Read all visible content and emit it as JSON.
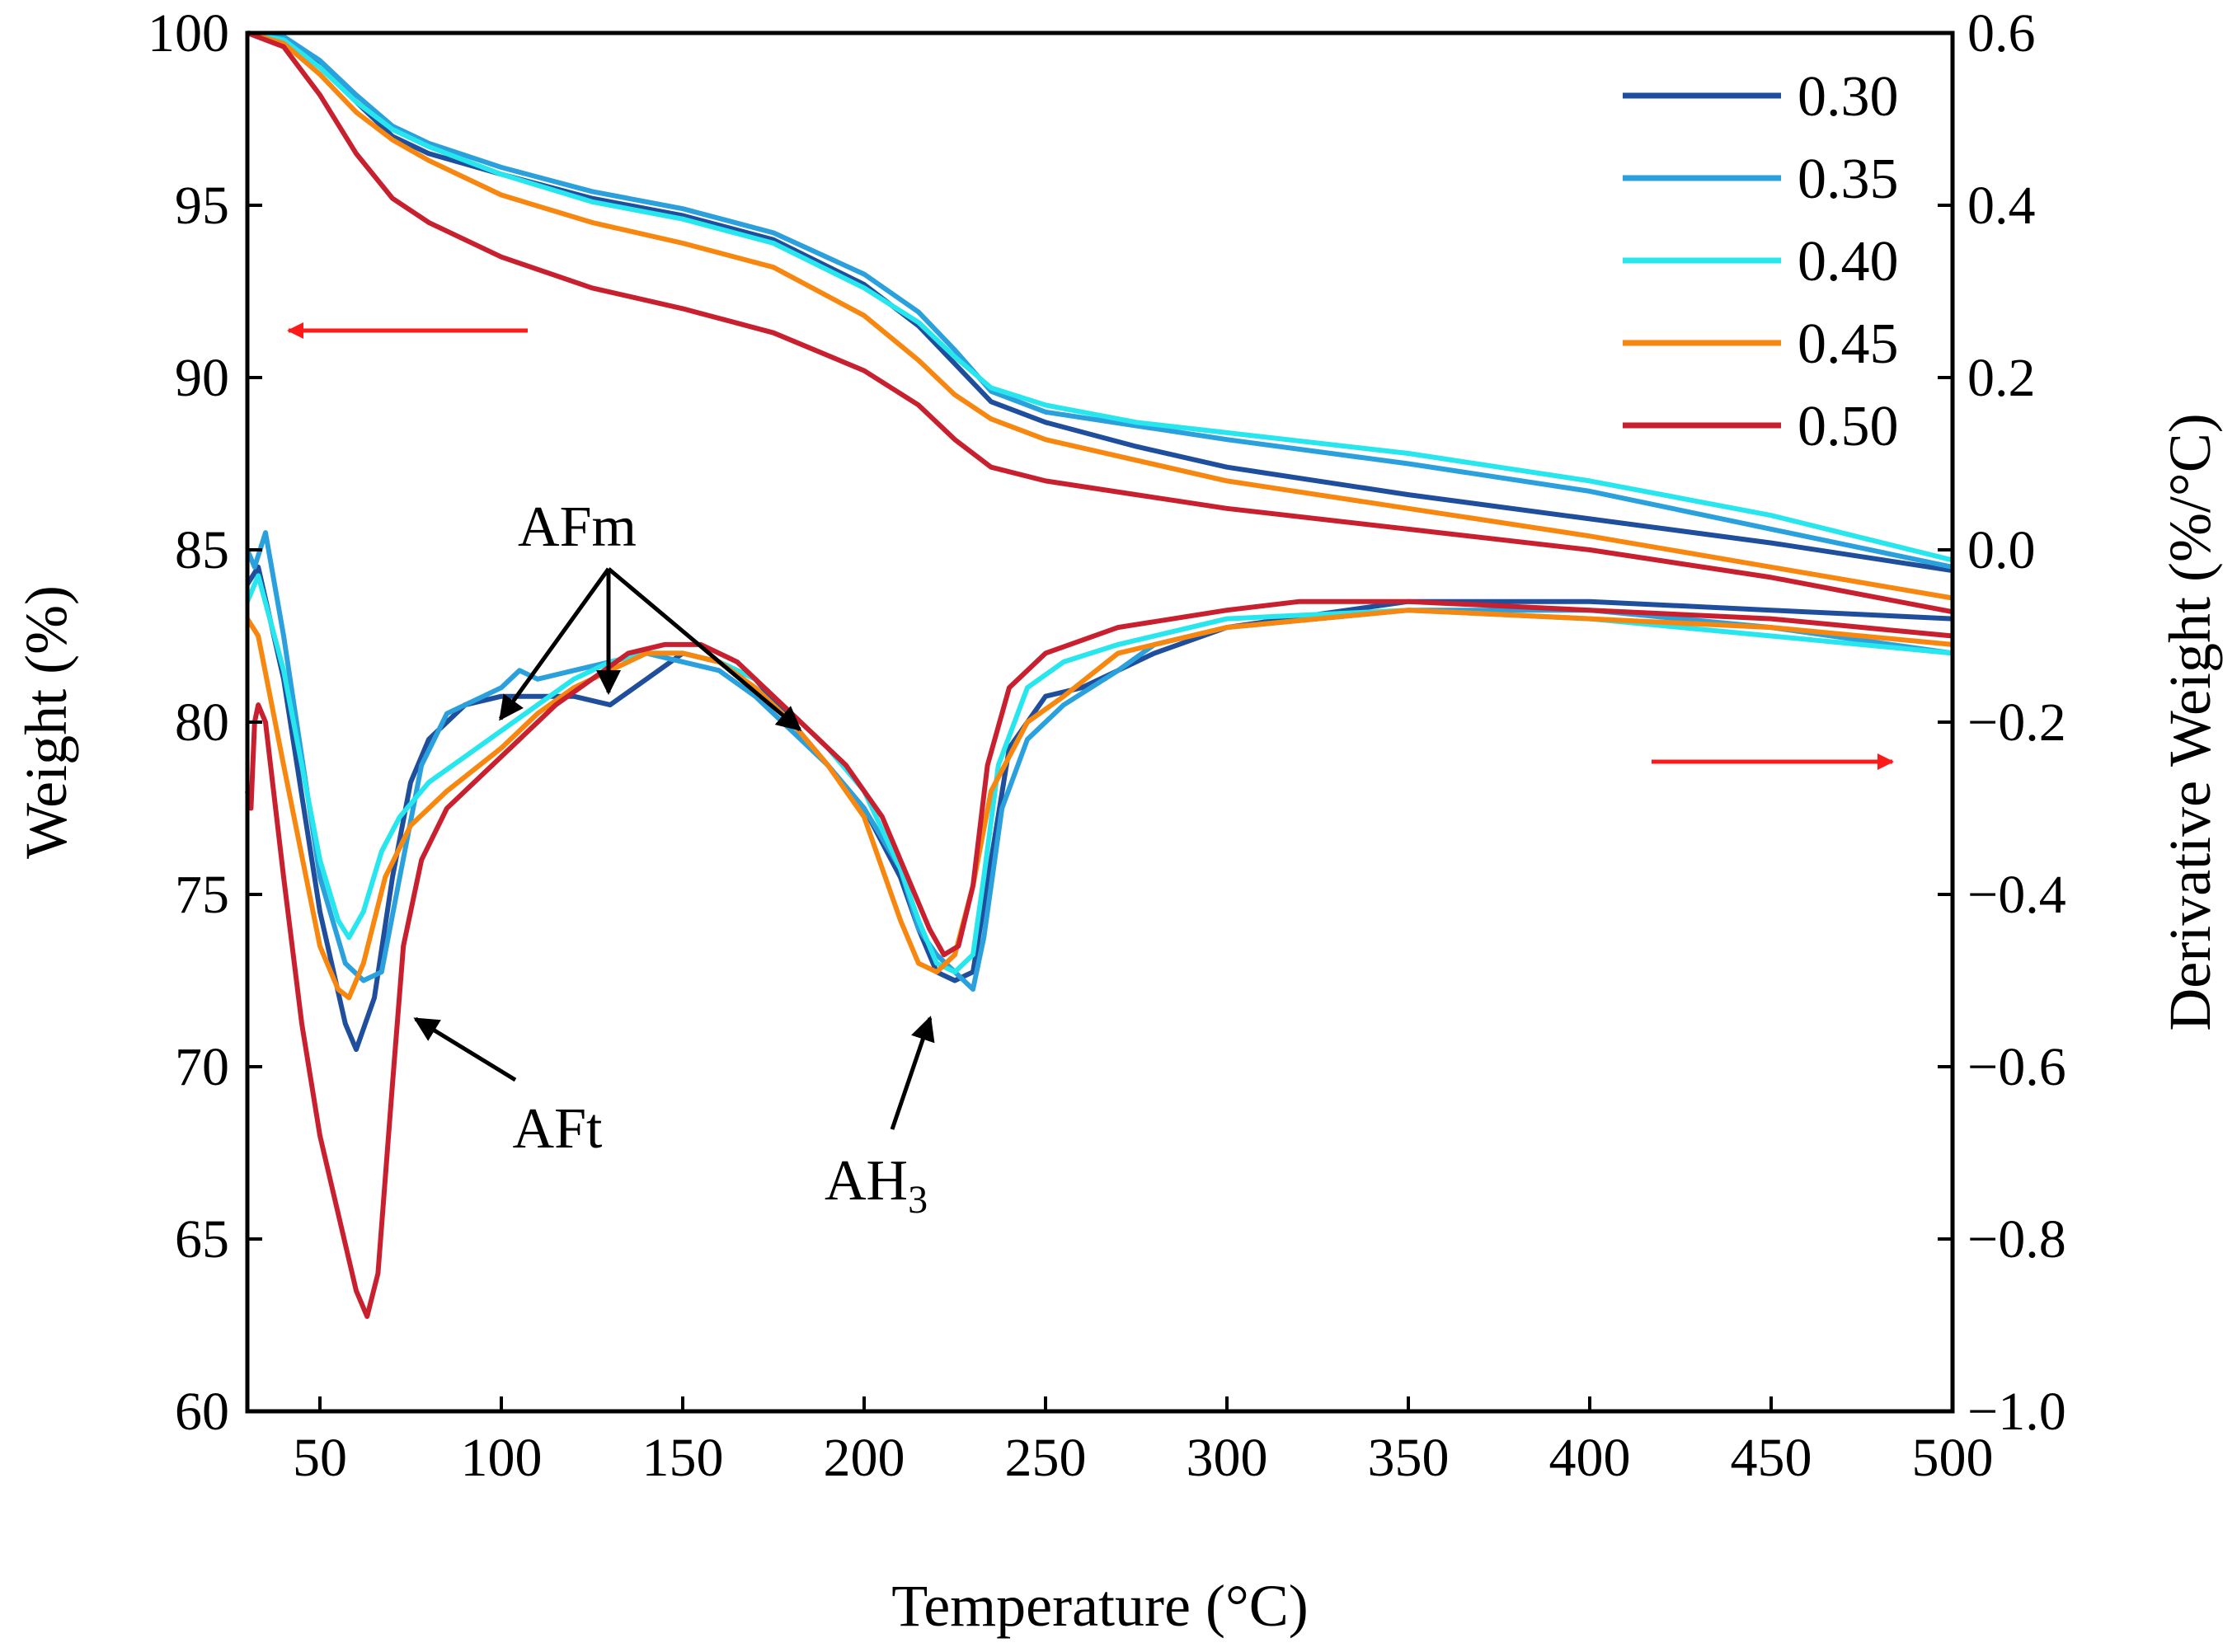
{
  "chart_data": {
    "type": "line",
    "title": "",
    "xlabel": "Temperature (°C)",
    "ylabel_left": "Weight (%)",
    "ylabel_right": "Derivative Weight (%/°C)",
    "xlim": [
      30,
      500
    ],
    "ylim_left": [
      60,
      100
    ],
    "ylim_right": [
      -1.0,
      0.6
    ],
    "x_ticks": [
      50,
      100,
      150,
      200,
      250,
      300,
      350,
      400,
      450,
      500
    ],
    "x_tick_labels": [
      "50",
      "100",
      "150",
      "200",
      "250",
      "300",
      "350",
      "400",
      "450",
      "500"
    ],
    "y_left_ticks": [
      60,
      65,
      70,
      75,
      80,
      85,
      90,
      95,
      100
    ],
    "y_left_tick_labels": [
      "60",
      "65",
      "70",
      "75",
      "80",
      "85",
      "90",
      "95",
      "100"
    ],
    "y_right_ticks": [
      -1.0,
      -0.8,
      -0.6,
      -0.4,
      -0.2,
      0.0,
      0.2,
      0.4,
      0.6
    ],
    "y_right_tick_labels": [
      "−1.0",
      "−0.8",
      "−0.6",
      "−0.4",
      "−0.2",
      "0.0",
      "0.2",
      "0.4",
      "0.6"
    ],
    "grid": false,
    "legend_position": "top-right",
    "series": [
      {
        "name": "0.30",
        "color": "#1f4e9c",
        "tg": [
          [
            30,
            100
          ],
          [
            40,
            99.8
          ],
          [
            50,
            99.1
          ],
          [
            60,
            98.0
          ],
          [
            70,
            97.0
          ],
          [
            80,
            96.5
          ],
          [
            100,
            95.9
          ],
          [
            125,
            95.2
          ],
          [
            150,
            94.7
          ],
          [
            175,
            94.0
          ],
          [
            200,
            92.7
          ],
          [
            215,
            91.5
          ],
          [
            225,
            90.4
          ],
          [
            235,
            89.3
          ],
          [
            250,
            88.7
          ],
          [
            275,
            88.0
          ],
          [
            300,
            87.4
          ],
          [
            350,
            86.6
          ],
          [
            400,
            85.9
          ],
          [
            450,
            85.2
          ],
          [
            500,
            84.4
          ]
        ],
        "dtg": [
          [
            30,
            -0.04
          ],
          [
            33,
            -0.02
          ],
          [
            40,
            -0.15
          ],
          [
            50,
            -0.42
          ],
          [
            57,
            -0.55
          ],
          [
            60,
            -0.58
          ],
          [
            65,
            -0.52
          ],
          [
            70,
            -0.38
          ],
          [
            75,
            -0.27
          ],
          [
            80,
            -0.22
          ],
          [
            90,
            -0.18
          ],
          [
            100,
            -0.17
          ],
          [
            110,
            -0.17
          ],
          [
            120,
            -0.17
          ],
          [
            130,
            -0.18
          ],
          [
            140,
            -0.15
          ],
          [
            150,
            -0.12
          ],
          [
            160,
            -0.13
          ],
          [
            170,
            -0.15
          ],
          [
            180,
            -0.2
          ],
          [
            190,
            -0.25
          ],
          [
            200,
            -0.3
          ],
          [
            210,
            -0.38
          ],
          [
            215,
            -0.44
          ],
          [
            220,
            -0.49
          ],
          [
            225,
            -0.5
          ],
          [
            230,
            -0.49
          ],
          [
            235,
            -0.36
          ],
          [
            240,
            -0.23
          ],
          [
            250,
            -0.17
          ],
          [
            260,
            -0.16
          ],
          [
            270,
            -0.14
          ],
          [
            280,
            -0.12
          ],
          [
            300,
            -0.09
          ],
          [
            350,
            -0.06
          ],
          [
            400,
            -0.06
          ],
          [
            450,
            -0.07
          ],
          [
            500,
            -0.08
          ]
        ]
      },
      {
        "name": "0.35",
        "color": "#2aa1dc",
        "tg": [
          [
            30,
            100
          ],
          [
            40,
            99.9
          ],
          [
            50,
            99.2
          ],
          [
            60,
            98.2
          ],
          [
            70,
            97.3
          ],
          [
            80,
            96.8
          ],
          [
            100,
            96.1
          ],
          [
            125,
            95.4
          ],
          [
            150,
            94.9
          ],
          [
            175,
            94.2
          ],
          [
            200,
            93.0
          ],
          [
            215,
            91.9
          ],
          [
            225,
            90.8
          ],
          [
            235,
            89.6
          ],
          [
            250,
            89.0
          ],
          [
            275,
            88.6
          ],
          [
            300,
            88.2
          ],
          [
            350,
            87.5
          ],
          [
            400,
            86.7
          ],
          [
            450,
            85.6
          ],
          [
            500,
            84.5
          ]
        ],
        "dtg": [
          [
            30,
            0.0
          ],
          [
            32,
            -0.02
          ],
          [
            35,
            0.02
          ],
          [
            40,
            -0.1
          ],
          [
            50,
            -0.38
          ],
          [
            57,
            -0.48
          ],
          [
            62,
            -0.5
          ],
          [
            67,
            -0.49
          ],
          [
            72,
            -0.38
          ],
          [
            78,
            -0.25
          ],
          [
            85,
            -0.19
          ],
          [
            95,
            -0.17
          ],
          [
            100,
            -0.16
          ],
          [
            105,
            -0.14
          ],
          [
            110,
            -0.15
          ],
          [
            120,
            -0.14
          ],
          [
            130,
            -0.13
          ],
          [
            140,
            -0.12
          ],
          [
            150,
            -0.13
          ],
          [
            160,
            -0.14
          ],
          [
            170,
            -0.17
          ],
          [
            180,
            -0.21
          ],
          [
            190,
            -0.25
          ],
          [
            200,
            -0.3
          ],
          [
            210,
            -0.37
          ],
          [
            215,
            -0.44
          ],
          [
            220,
            -0.47
          ],
          [
            225,
            -0.49
          ],
          [
            230,
            -0.51
          ],
          [
            233,
            -0.45
          ],
          [
            238,
            -0.3
          ],
          [
            245,
            -0.22
          ],
          [
            255,
            -0.18
          ],
          [
            270,
            -0.14
          ],
          [
            280,
            -0.11
          ],
          [
            300,
            -0.09
          ],
          [
            350,
            -0.07
          ],
          [
            400,
            -0.07
          ],
          [
            450,
            -0.09
          ],
          [
            500,
            -0.12
          ]
        ]
      },
      {
        "name": "0.40",
        "color": "#27e6ee",
        "tg": [
          [
            30,
            100
          ],
          [
            40,
            99.8
          ],
          [
            50,
            99.0
          ],
          [
            60,
            98.0
          ],
          [
            70,
            97.2
          ],
          [
            80,
            96.7
          ],
          [
            100,
            95.9
          ],
          [
            125,
            95.1
          ],
          [
            150,
            94.6
          ],
          [
            175,
            93.9
          ],
          [
            200,
            92.6
          ],
          [
            215,
            91.6
          ],
          [
            225,
            90.6
          ],
          [
            235,
            89.7
          ],
          [
            250,
            89.2
          ],
          [
            275,
            88.7
          ],
          [
            300,
            88.4
          ],
          [
            350,
            87.8
          ],
          [
            400,
            87.0
          ],
          [
            450,
            86.0
          ],
          [
            500,
            84.7
          ]
        ],
        "dtg": [
          [
            30,
            -0.06
          ],
          [
            33,
            -0.03
          ],
          [
            40,
            -0.14
          ],
          [
            50,
            -0.36
          ],
          [
            55,
            -0.43
          ],
          [
            58,
            -0.45
          ],
          [
            62,
            -0.42
          ],
          [
            67,
            -0.35
          ],
          [
            72,
            -0.31
          ],
          [
            80,
            -0.27
          ],
          [
            90,
            -0.24
          ],
          [
            100,
            -0.21
          ],
          [
            110,
            -0.18
          ],
          [
            120,
            -0.15
          ],
          [
            130,
            -0.13
          ],
          [
            140,
            -0.12
          ],
          [
            150,
            -0.12
          ],
          [
            160,
            -0.13
          ],
          [
            170,
            -0.15
          ],
          [
            180,
            -0.19
          ],
          [
            190,
            -0.23
          ],
          [
            200,
            -0.28
          ],
          [
            210,
            -0.37
          ],
          [
            215,
            -0.43
          ],
          [
            220,
            -0.48
          ],
          [
            225,
            -0.49
          ],
          [
            230,
            -0.47
          ],
          [
            233,
            -0.38
          ],
          [
            237,
            -0.25
          ],
          [
            245,
            -0.16
          ],
          [
            255,
            -0.13
          ],
          [
            270,
            -0.11
          ],
          [
            300,
            -0.08
          ],
          [
            350,
            -0.07
          ],
          [
            400,
            -0.08
          ],
          [
            450,
            -0.1
          ],
          [
            500,
            -0.12
          ]
        ]
      },
      {
        "name": "0.45",
        "color": "#f7870f",
        "tg": [
          [
            30,
            100
          ],
          [
            40,
            99.7
          ],
          [
            50,
            98.8
          ],
          [
            60,
            97.7
          ],
          [
            70,
            96.9
          ],
          [
            80,
            96.3
          ],
          [
            100,
            95.3
          ],
          [
            125,
            94.5
          ],
          [
            150,
            93.9
          ],
          [
            175,
            93.2
          ],
          [
            200,
            91.8
          ],
          [
            215,
            90.5
          ],
          [
            225,
            89.5
          ],
          [
            235,
            88.8
          ],
          [
            250,
            88.2
          ],
          [
            275,
            87.6
          ],
          [
            300,
            87.0
          ],
          [
            350,
            86.2
          ],
          [
            400,
            85.4
          ],
          [
            450,
            84.5
          ],
          [
            500,
            83.6
          ]
        ],
        "dtg": [
          [
            30,
            -0.08
          ],
          [
            33,
            -0.1
          ],
          [
            40,
            -0.25
          ],
          [
            50,
            -0.46
          ],
          [
            55,
            -0.51
          ],
          [
            58,
            -0.52
          ],
          [
            62,
            -0.48
          ],
          [
            68,
            -0.38
          ],
          [
            75,
            -0.32
          ],
          [
            85,
            -0.28
          ],
          [
            100,
            -0.23
          ],
          [
            110,
            -0.19
          ],
          [
            120,
            -0.16
          ],
          [
            130,
            -0.14
          ],
          [
            140,
            -0.12
          ],
          [
            150,
            -0.12
          ],
          [
            160,
            -0.13
          ],
          [
            170,
            -0.16
          ],
          [
            180,
            -0.2
          ],
          [
            190,
            -0.25
          ],
          [
            200,
            -0.31
          ],
          [
            205,
            -0.37
          ],
          [
            210,
            -0.43
          ],
          [
            215,
            -0.48
          ],
          [
            220,
            -0.49
          ],
          [
            225,
            -0.47
          ],
          [
            230,
            -0.39
          ],
          [
            235,
            -0.28
          ],
          [
            245,
            -0.2
          ],
          [
            255,
            -0.17
          ],
          [
            270,
            -0.12
          ],
          [
            300,
            -0.09
          ],
          [
            350,
            -0.07
          ],
          [
            400,
            -0.08
          ],
          [
            450,
            -0.09
          ],
          [
            500,
            -0.11
          ]
        ]
      },
      {
        "name": "0.50",
        "color": "#c8202f",
        "tg": [
          [
            30,
            100
          ],
          [
            40,
            99.6
          ],
          [
            50,
            98.2
          ],
          [
            60,
            96.5
          ],
          [
            70,
            95.2
          ],
          [
            80,
            94.5
          ],
          [
            100,
            93.5
          ],
          [
            125,
            92.6
          ],
          [
            150,
            92.0
          ],
          [
            175,
            91.3
          ],
          [
            200,
            90.2
          ],
          [
            215,
            89.2
          ],
          [
            225,
            88.2
          ],
          [
            235,
            87.4
          ],
          [
            250,
            87.0
          ],
          [
            275,
            86.6
          ],
          [
            300,
            86.2
          ],
          [
            350,
            85.6
          ],
          [
            400,
            85.0
          ],
          [
            450,
            84.2
          ],
          [
            500,
            83.2
          ]
        ],
        "dtg": [
          [
            30,
            -0.28
          ],
          [
            31,
            -0.3
          ],
          [
            32,
            -0.2
          ],
          [
            33,
            -0.18
          ],
          [
            35,
            -0.2
          ],
          [
            40,
            -0.38
          ],
          [
            45,
            -0.55
          ],
          [
            50,
            -0.68
          ],
          [
            55,
            -0.77
          ],
          [
            60,
            -0.86
          ],
          [
            63,
            -0.89
          ],
          [
            66,
            -0.84
          ],
          [
            70,
            -0.62
          ],
          [
            73,
            -0.46
          ],
          [
            78,
            -0.36
          ],
          [
            85,
            -0.3
          ],
          [
            95,
            -0.26
          ],
          [
            105,
            -0.22
          ],
          [
            115,
            -0.18
          ],
          [
            125,
            -0.15
          ],
          [
            135,
            -0.12
          ],
          [
            145,
            -0.11
          ],
          [
            155,
            -0.11
          ],
          [
            165,
            -0.13
          ],
          [
            175,
            -0.17
          ],
          [
            185,
            -0.21
          ],
          [
            195,
            -0.25
          ],
          [
            205,
            -0.31
          ],
          [
            212,
            -0.38
          ],
          [
            218,
            -0.44
          ],
          [
            222,
            -0.47
          ],
          [
            226,
            -0.46
          ],
          [
            230,
            -0.39
          ],
          [
            234,
            -0.25
          ],
          [
            240,
            -0.16
          ],
          [
            250,
            -0.12
          ],
          [
            270,
            -0.09
          ],
          [
            300,
            -0.07
          ],
          [
            320,
            -0.06
          ],
          [
            350,
            -0.06
          ],
          [
            400,
            -0.07
          ],
          [
            450,
            -0.08
          ],
          [
            500,
            -0.1
          ]
        ]
      }
    ],
    "annotations": [
      {
        "id": "afm",
        "text": "AFm"
      },
      {
        "id": "aft",
        "text": "AFt"
      },
      {
        "id": "ah3",
        "text": "AH",
        "subscript": "3"
      }
    ]
  }
}
